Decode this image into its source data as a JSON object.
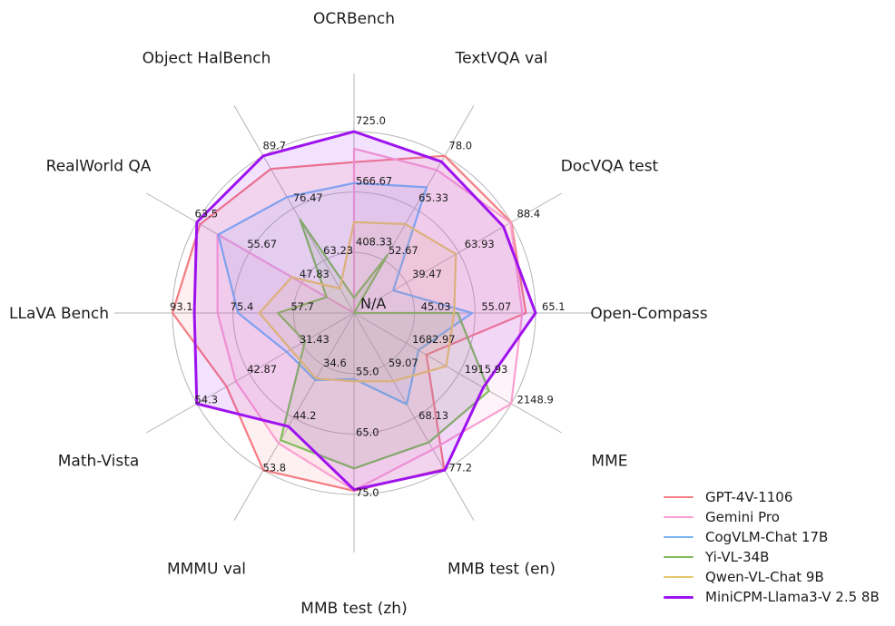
{
  "chart_data": {
    "type": "radar",
    "na_label": "N/A",
    "grid_color": "#b4b4b4",
    "text_color": "#1c1c1c",
    "rings": 3,
    "axes": [
      {
        "label": "OCRBench",
        "min": 250,
        "max": 725,
        "ticks": [
          "408.33",
          "566.67",
          "725.0"
        ]
      },
      {
        "label": "TextVQA val",
        "min": 40,
        "max": 78,
        "ticks": [
          "52.67",
          "65.33",
          "78.0"
        ]
      },
      {
        "label": "DocVQA test",
        "min": 15,
        "max": 88.4,
        "ticks": [
          "39.47",
          "63.93",
          "88.4"
        ]
      },
      {
        "label": "Open-Compass",
        "min": 35,
        "max": 65.1,
        "ticks": [
          "45.03",
          "55.07",
          "65.1"
        ]
      },
      {
        "label": "MME",
        "min": 1450,
        "max": 2148.9,
        "ticks": [
          "1682.97",
          "1915.93",
          "2148.9"
        ]
      },
      {
        "label": "MMB test (en)",
        "min": 50,
        "max": 77.2,
        "ticks": [
          "59.07",
          "68.13",
          "77.2"
        ]
      },
      {
        "label": "MMB test (zh)",
        "min": 45,
        "max": 75,
        "ticks": [
          "55.0",
          "65.0",
          "75.0"
        ]
      },
      {
        "label": "MMMU val",
        "min": 25,
        "max": 53.8,
        "ticks": [
          "34.6",
          "44.2",
          "53.8"
        ]
      },
      {
        "label": "Math-Vista",
        "min": 20,
        "max": 54.3,
        "ticks": [
          "31.43",
          "42.87",
          "54.3"
        ]
      },
      {
        "label": "LLaVA Bench",
        "min": 40,
        "max": 93.1,
        "ticks": [
          "57.7",
          "75.4",
          "93.1"
        ]
      },
      {
        "label": "RealWorld QA",
        "min": 40,
        "max": 63.5,
        "ticks": [
          "47.83",
          "55.67",
          "63.5"
        ]
      },
      {
        "label": "Object HalBench",
        "min": 50,
        "max": 89.7,
        "ticks": [
          "63.23",
          "76.47",
          "89.7"
        ]
      }
    ],
    "series": [
      {
        "name": "GPT-4V-1106",
        "color": "#f47d83",
        "line_width": 2.2,
        "values": [
          645,
          78.0,
          88.4,
          63.5,
          1771.5,
          77.0,
          74.4,
          53.8,
          47.8,
          93.1,
          63.0,
          86.4
        ]
      },
      {
        "name": "Gemini Pro",
        "color": "#f9a0d1",
        "line_width": 2.2,
        "values": [
          680,
          74.6,
          88.1,
          62.9,
          2148.9,
          73.6,
          74.3,
          48.9,
          45.8,
          79.9,
          60.4,
          null
        ]
      },
      {
        "name": "CogVLM-Chat 17B",
        "color": "#7cb4f1",
        "line_width": 2.2,
        "values": [
          590,
          70.4,
          33.3,
          54.6,
          1736.6,
          65.8,
          55.9,
          37.3,
          34.7,
          73.9,
          60.3,
          79.3
        ]
      },
      {
        "name": "Yi-VL-34B",
        "color": "#81bd5c",
        "line_width": 2.2,
        "values": [
          290,
          54.0,
          null,
          52.2,
          2050.2,
          72.4,
          70.7,
          48.3,
          30.7,
          62.3,
          44.1,
          73.6
        ]
      },
      {
        "name": "Qwen-VL-Chat 9B",
        "color": "#e4c76c",
        "line_width": 2.2,
        "values": [
          488,
          61.5,
          62.6,
          51.6,
          1860.0,
          61.8,
          56.3,
          37.0,
          33.8,
          67.7,
          49.3,
          56.2
        ]
      },
      {
        "name": "MiniCPM-Llama3-V 2.5 8B",
        "color": "#9e12ee",
        "line_width": 3,
        "values": [
          725,
          76.6,
          84.8,
          65.1,
          2024.6,
          77.2,
          74.2,
          45.8,
          54.3,
          86.7,
          63.5,
          89.7
        ]
      }
    ]
  },
  "legend": {
    "items": [
      "GPT-4V-1106",
      "Gemini Pro",
      "CogVLM-Chat 17B",
      "Yi-VL-34B",
      "Qwen-VL-Chat 9B",
      "MiniCPM-Llama3-V 2.5 8B"
    ]
  }
}
